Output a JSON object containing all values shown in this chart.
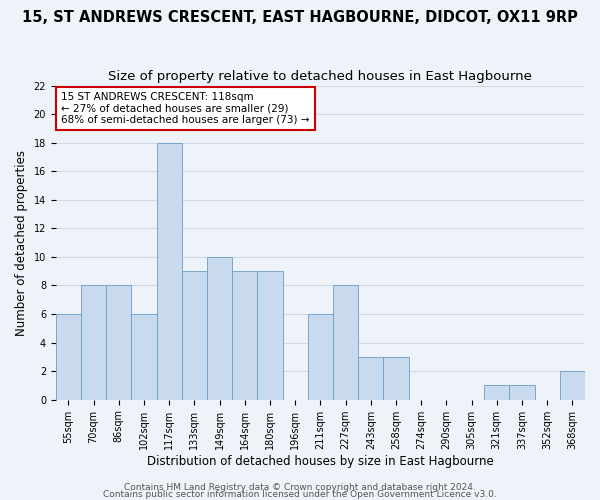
{
  "title": "15, ST ANDREWS CRESCENT, EAST HAGBOURNE, DIDCOT, OX11 9RP",
  "subtitle": "Size of property relative to detached houses in East Hagbourne",
  "xlabel": "Distribution of detached houses by size in East Hagbourne",
  "ylabel": "Number of detached properties",
  "bin_labels": [
    "55sqm",
    "70sqm",
    "86sqm",
    "102sqm",
    "117sqm",
    "133sqm",
    "149sqm",
    "164sqm",
    "180sqm",
    "196sqm",
    "211sqm",
    "227sqm",
    "243sqm",
    "258sqm",
    "274sqm",
    "290sqm",
    "305sqm",
    "321sqm",
    "337sqm",
    "352sqm",
    "368sqm"
  ],
  "bar_values": [
    6,
    8,
    8,
    6,
    18,
    9,
    10,
    9,
    9,
    0,
    6,
    8,
    3,
    3,
    0,
    0,
    0,
    1,
    1,
    0,
    2
  ],
  "bar_color": "#c9d9ee",
  "bar_edge_color": "#6b9ec8",
  "annotation_text": "15 ST ANDREWS CRESCENT: 118sqm\n← 27% of detached houses are smaller (29)\n68% of semi-detached houses are larger (73) →",
  "annotation_box_color": "#ffffff",
  "annotation_box_edge": "#cc0000",
  "ylim": [
    0,
    22
  ],
  "yticks": [
    0,
    2,
    4,
    6,
    8,
    10,
    12,
    14,
    16,
    18,
    20,
    22
  ],
  "footer1": "Contains HM Land Registry data © Crown copyright and database right 2024.",
  "footer2": "Contains public sector information licensed under the Open Government Licence v3.0.",
  "background_color": "#eef2f9",
  "plot_bg_color": "#eef2f9",
  "grid_color": "#d0d8e8",
  "title_fontsize": 10.5,
  "subtitle_fontsize": 9.5,
  "axis_label_fontsize": 8.5,
  "tick_fontsize": 7,
  "footer_fontsize": 6.5
}
